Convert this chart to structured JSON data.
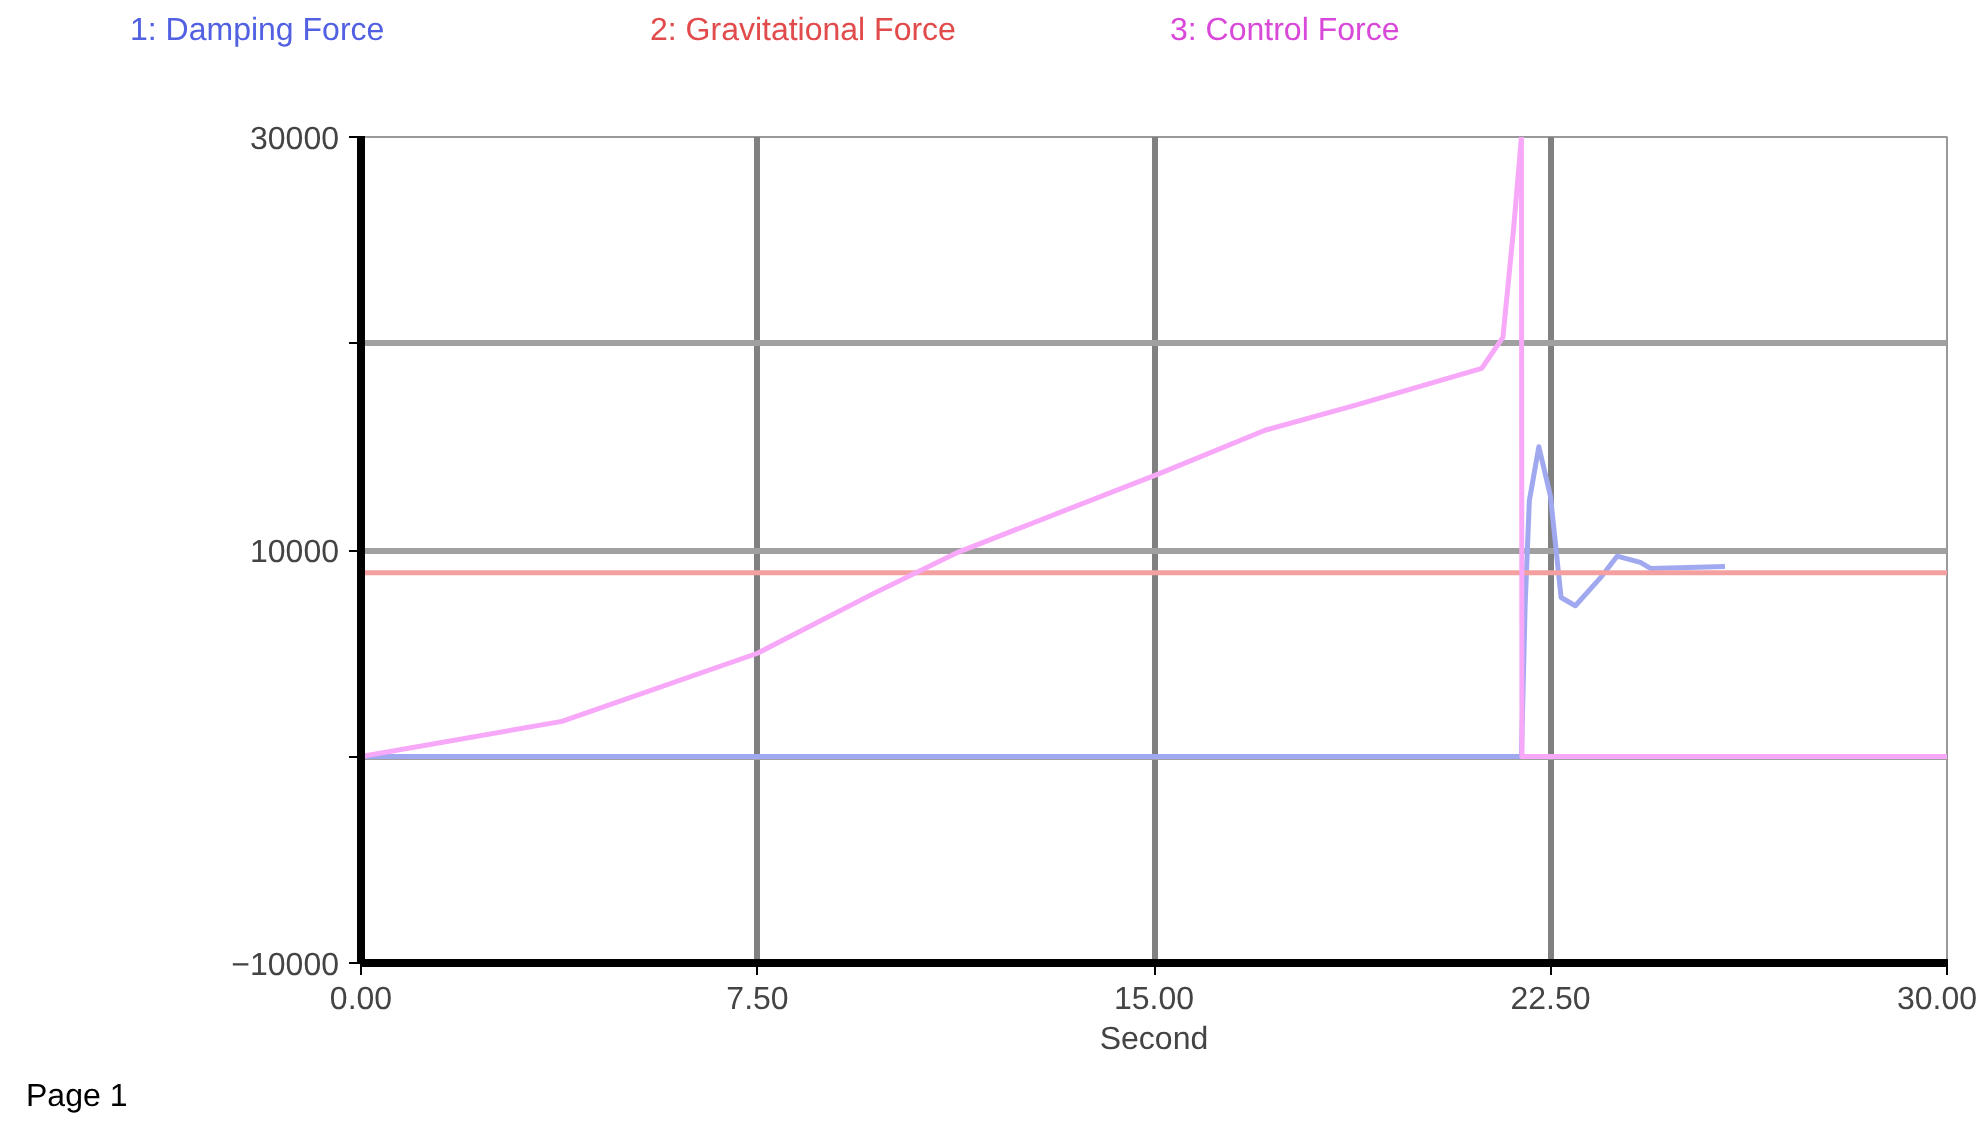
{
  "chart_data": {
    "type": "line",
    "xlabel": "Second",
    "xlim": [
      0,
      30
    ],
    "xticks": [
      {
        "value": 0,
        "label": "0.00"
      },
      {
        "value": 7.5,
        "label": "7.50"
      },
      {
        "value": 15,
        "label": "15.00"
      },
      {
        "value": 22.5,
        "label": "22.50"
      },
      {
        "value": 30,
        "label": "30.00"
      }
    ],
    "ylim": [
      -10000,
      30000
    ],
    "yticks": [
      -10000,
      {
        "value": 0,
        "label": null
      },
      10000,
      {
        "value": 20000,
        "label": null
      },
      30000
    ],
    "grid": true,
    "legend": "top",
    "line_style": "solid",
    "annotations": [
      "Page 1"
    ],
    "series": [
      {
        "name": "1: Damping Force",
        "color": "#a0a8f0",
        "x": [
          0,
          21.95,
          22.02,
          22.1,
          22.28,
          22.5,
          22.7,
          22.97,
          23.46,
          23.76,
          24.2,
          24.4,
          25.8
        ],
        "values": [
          0,
          0,
          7300,
          12400,
          15000,
          12600,
          7700,
          7300,
          8700,
          9700,
          9400,
          9100,
          9200
        ]
      },
      {
        "name": "2: Gravitational Force",
        "color": "#f4a0a0",
        "x": [
          0,
          30
        ],
        "values": [
          8900,
          8900
        ]
      },
      {
        "name": "3: Control Force",
        "color": "#f8a8f8",
        "x": [
          0,
          3.8,
          7.5,
          9.7,
          11.3,
          15.1,
          17.1,
          18.8,
          21.2,
          21.6,
          21.8,
          21.95,
          21.96,
          30
        ],
        "values": [
          0,
          1700,
          5000,
          7900,
          9900,
          13700,
          15800,
          17000,
          18800,
          20300,
          25500,
          30000,
          0,
          0
        ]
      }
    ]
  }
}
